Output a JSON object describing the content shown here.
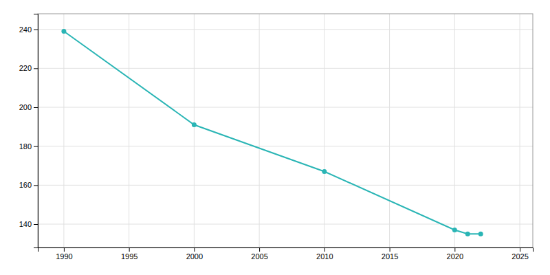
{
  "chart_data": {
    "type": "line",
    "x": [
      1990,
      2000,
      2010,
      2020,
      2021,
      2022
    ],
    "values": [
      239,
      191,
      167,
      137,
      135,
      135
    ],
    "color": "#2ab5b5",
    "marker": "circle",
    "xlim": [
      1988,
      2026
    ],
    "ylim": [
      128,
      248
    ],
    "xticks": [
      1990,
      1995,
      2000,
      2005,
      2010,
      2015,
      2020,
      2025
    ],
    "yticks": [
      140,
      160,
      180,
      200,
      220,
      240
    ],
    "grid": true
  }
}
